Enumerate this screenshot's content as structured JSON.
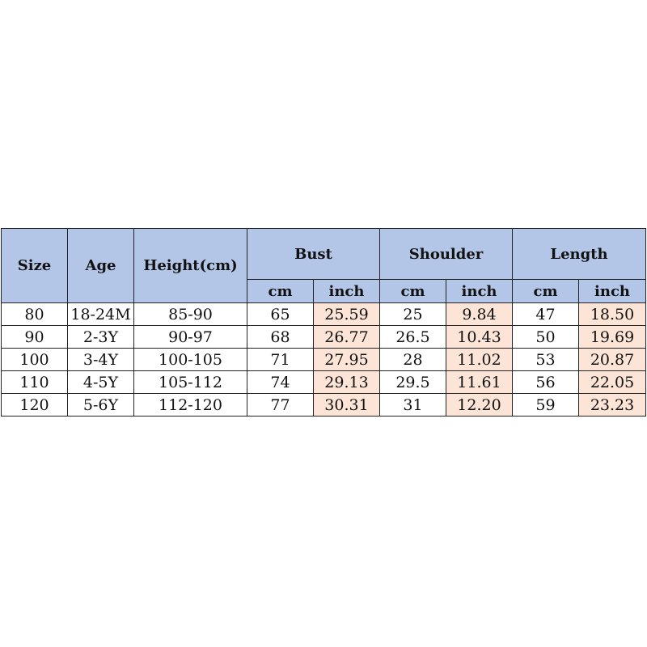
{
  "headers": {
    "size": "Size",
    "age": "Age",
    "height": "Height(cm)",
    "bust": "Bust",
    "shoulder": "Shoulder",
    "length": "Length",
    "cm": "cm",
    "inch": "inch"
  },
  "colors": {
    "header": "#b4c6e7",
    "inch_cell": "#fce4d6"
  },
  "rows": [
    [
      "80",
      "18-24M",
      "85-90",
      "65",
      "25.59",
      "25",
      "9.84",
      "47",
      "18.50"
    ],
    [
      "90",
      "2-3Y",
      "90-97",
      "68",
      "26.77",
      "26.5",
      "10.43",
      "50",
      "19.69"
    ],
    [
      "100",
      "3-4Y",
      "100-105",
      "71",
      "27.95",
      "28",
      "11.02",
      "53",
      "20.87"
    ],
    [
      "110",
      "4-5Y",
      "105-112",
      "74",
      "29.13",
      "29.5",
      "11.61",
      "56",
      "22.05"
    ],
    [
      "120",
      "5-6Y",
      "112-120",
      "77",
      "30.31",
      "31",
      "12.20",
      "59",
      "23.23"
    ]
  ]
}
